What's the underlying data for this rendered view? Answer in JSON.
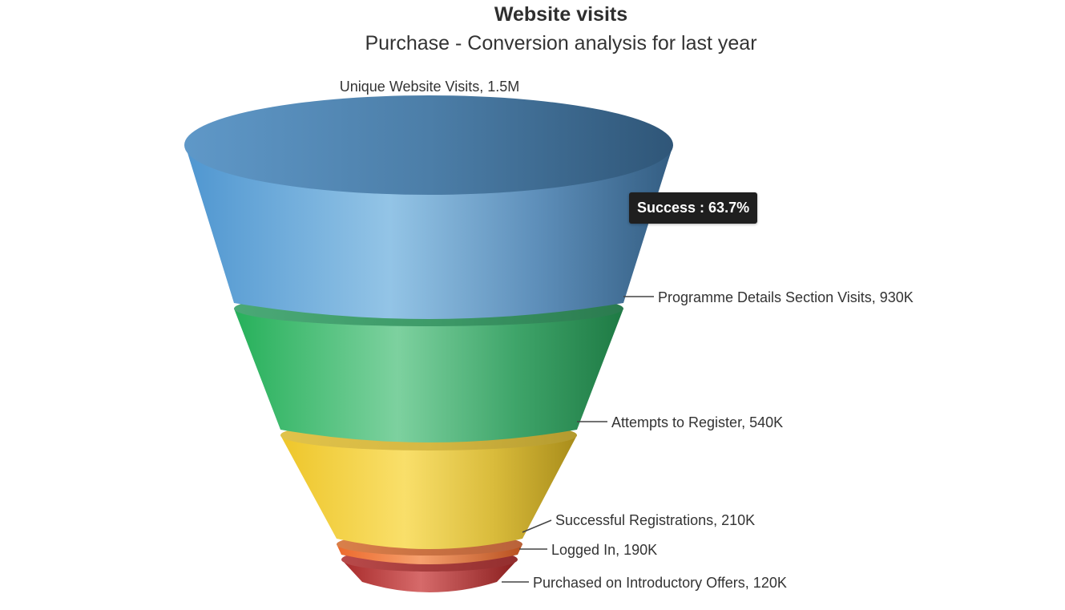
{
  "chart_data": {
    "type": "funnel",
    "title": "Website visits",
    "subtitle": "Purchase - Conversion analysis for last year",
    "segments": [
      {
        "label": "Unique Website Visits, 1.5M",
        "value": 1500000,
        "color": "#5a9fd4"
      },
      {
        "label": "Programme Details Section Visits, 930K",
        "value": 930000,
        "color": "#3fb56b"
      },
      {
        "label": "Attempts to Register, 540K",
        "value": 540000,
        "color": "#f0cf3a"
      },
      {
        "label": "Successful Registrations, 210K",
        "value": 210000,
        "color": "#ef7b3c"
      },
      {
        "label": "Logged In, 190K",
        "value": 190000,
        "color": "#c23b3b"
      },
      {
        "label": "Purchased on Introductory Offers, 120K",
        "value": 120000,
        "color": "#c23b3b"
      }
    ],
    "tooltip": {
      "text": "Success : 63.7%"
    }
  }
}
